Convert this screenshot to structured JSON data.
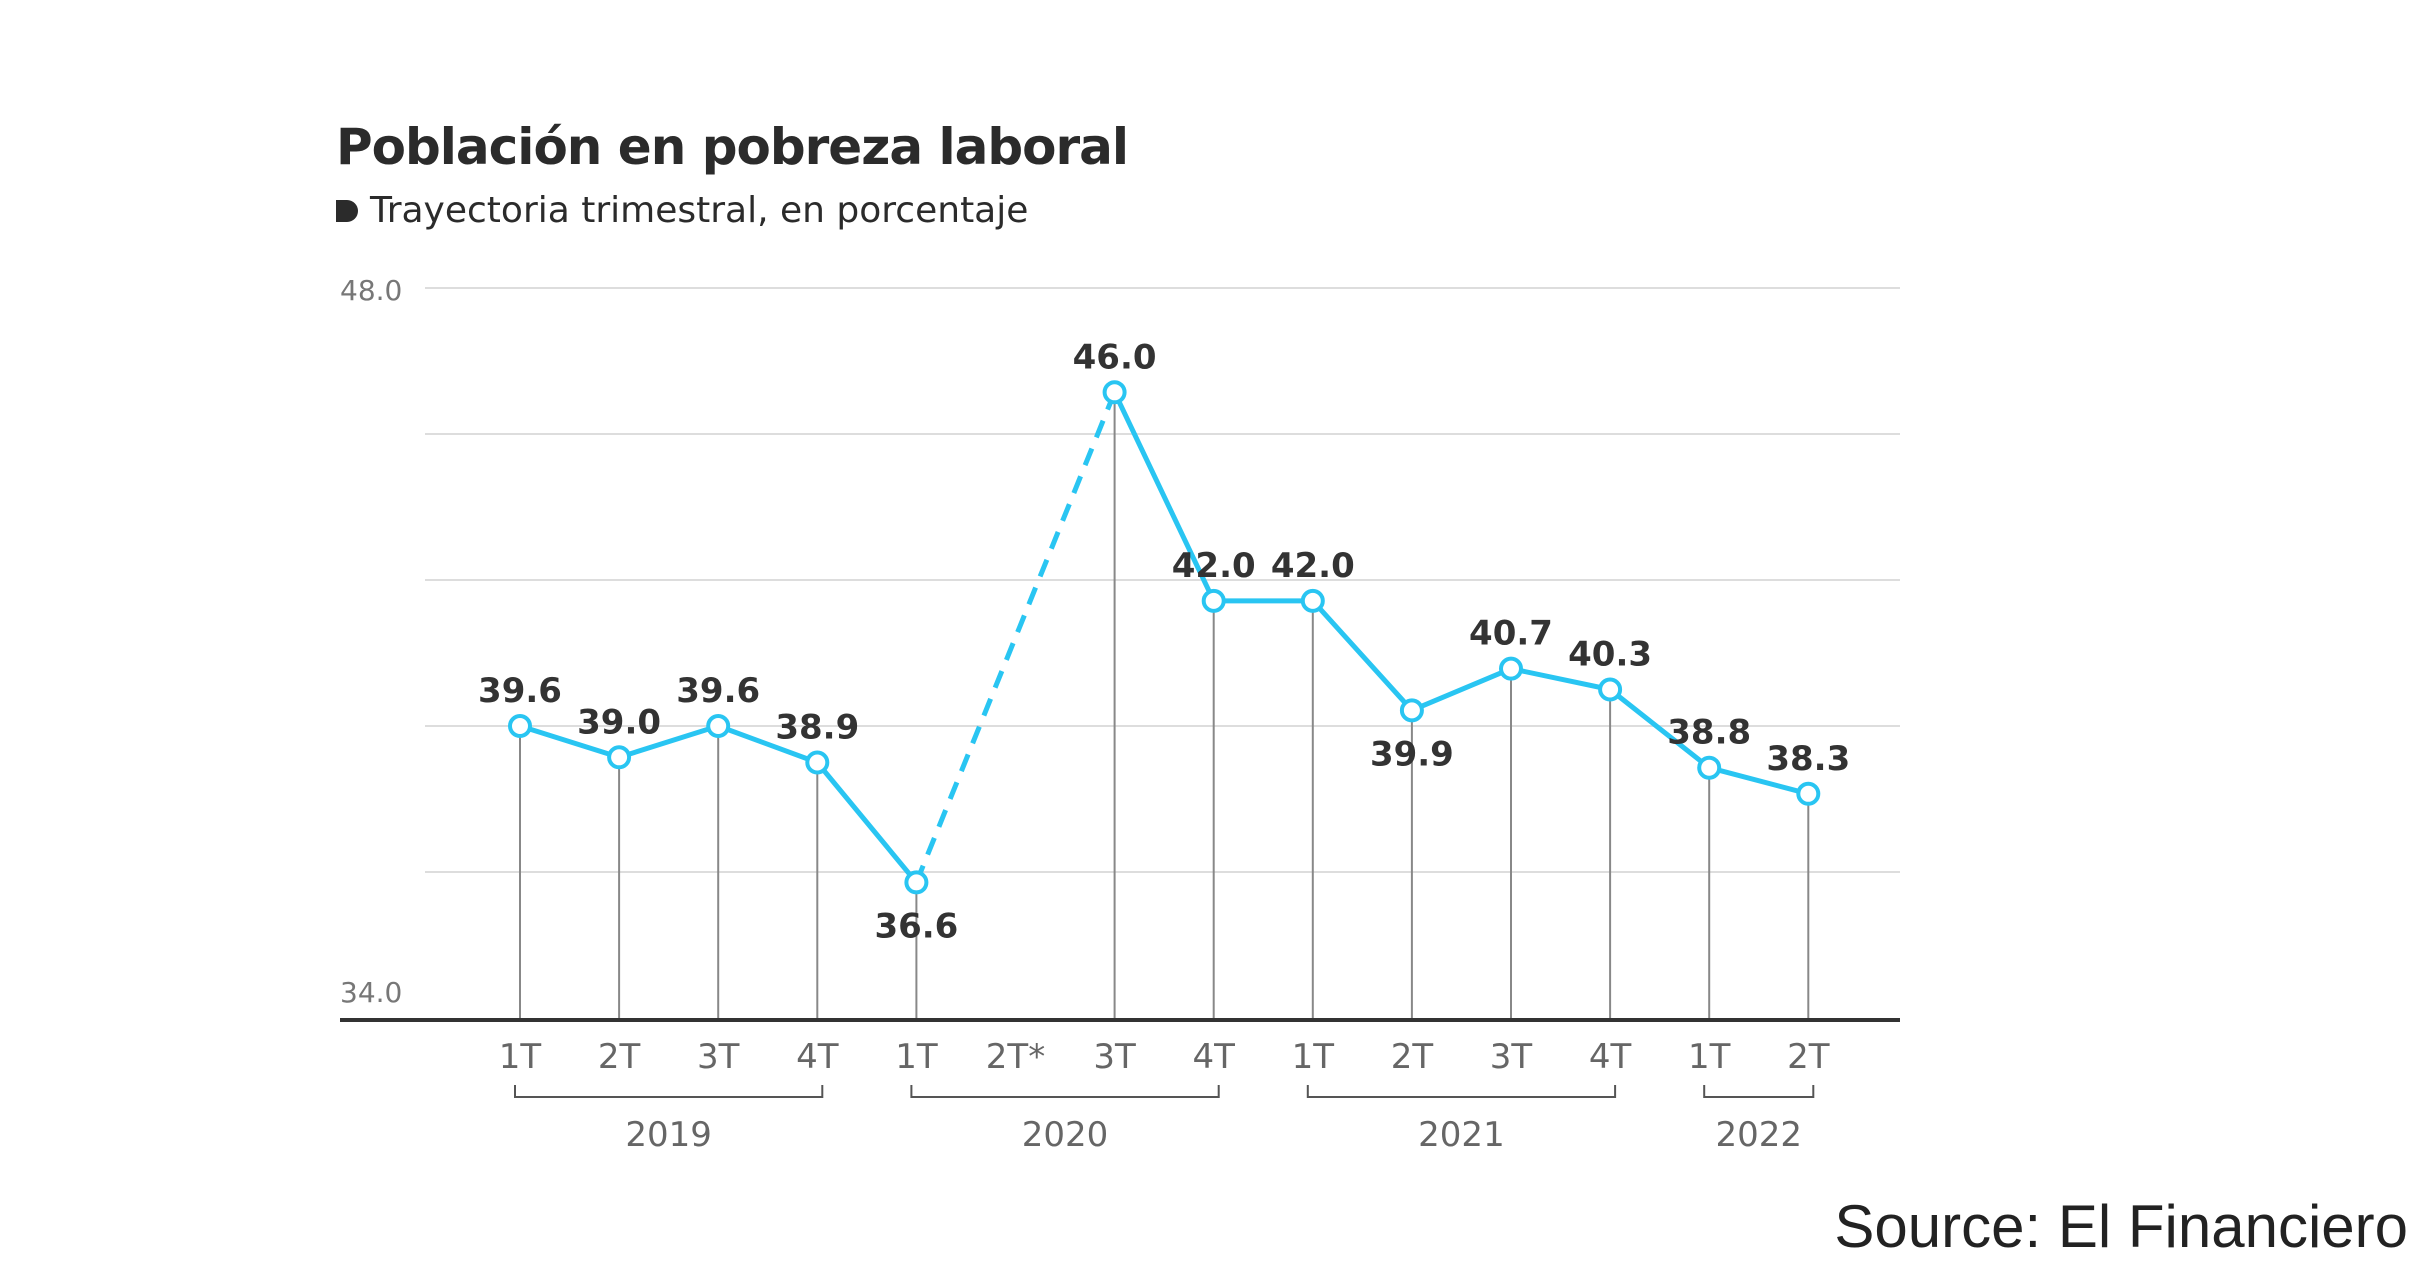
{
  "title": "Población en pobreza laboral",
  "subtitle": "Trayectoria trimestral, en porcentaje",
  "source": "Source: El Financiero",
  "chart_data": {
    "type": "line",
    "title": "Población en pobreza laboral",
    "subtitle": "Trayectoria trimestral, en porcentaje",
    "categories": [
      "1T",
      "2T",
      "3T",
      "4T",
      "1T",
      "2T*",
      "3T",
      "4T",
      "1T",
      "2T",
      "3T",
      "4T",
      "1T",
      "2T"
    ],
    "years": [
      {
        "label": "2019",
        "from": 0,
        "to": 3
      },
      {
        "label": "2020",
        "from": 4,
        "to": 7
      },
      {
        "label": "2021",
        "from": 8,
        "to": 11
      },
      {
        "label": "2022",
        "from": 12,
        "to": 13
      }
    ],
    "series": [
      {
        "values": [
          39.6,
          39.0,
          39.6,
          38.9,
          36.6,
          null,
          46.0,
          42.0,
          42.0,
          39.9,
          40.7,
          40.3,
          38.8,
          38.3
        ]
      }
    ],
    "data_labels": [
      "39.6",
      "39.0",
      "39.6",
      "38.9",
      "36.6",
      "",
      "46.0",
      "42.0",
      "42.0",
      "39.9",
      "40.7",
      "40.3",
      "38.8",
      "38.3"
    ],
    "label_position": [
      "above",
      "above",
      "above",
      "above",
      "below",
      "",
      "above",
      "above",
      "above",
      "below",
      "above",
      "above",
      "above",
      "above"
    ],
    "dashed_segment": [
      4,
      6
    ],
    "ylim": [
      34.0,
      48.0
    ],
    "yticks": [
      "48.0",
      "34.0"
    ],
    "grid": true,
    "line_color": "#29c5f2"
  }
}
